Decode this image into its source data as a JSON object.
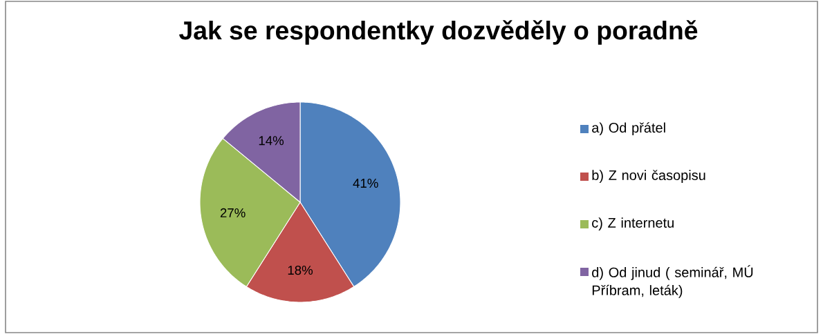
{
  "chart_data": {
    "type": "pie",
    "title": "Jak se respondentky dozvěděly o poradně",
    "categories": [
      "a) Od přátel",
      "b) Z novi časopisu",
      "c) Z internetu",
      "d) Od jinud ( seminář, MÚ Příbram, leták)"
    ],
    "values": [
      41,
      18,
      27,
      14
    ],
    "value_labels": [
      "41%",
      "18%",
      "27%",
      "14%"
    ],
    "colors": [
      "#4f81bd",
      "#c0504d",
      "#9bbb59",
      "#8064a2"
    ],
    "legend": "right"
  }
}
